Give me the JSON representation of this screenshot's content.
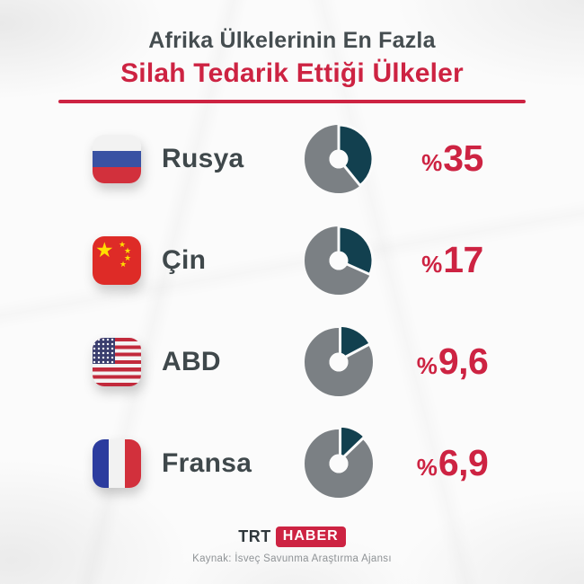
{
  "title": {
    "line1": "Afrika Ülkelerinin En Fazla",
    "line2": "Silah Tedarik Ettiği Ülkeler"
  },
  "chart_data": {
    "type": "pie",
    "title": "Afrika Ülkelerinin En Fazla Silah Tedarik Ettiği Ülkeler",
    "categories": [
      "Rusya",
      "Çin",
      "ABD",
      "Fransa"
    ],
    "values": [
      35,
      17,
      9.6,
      6.9
    ],
    "unit": "%",
    "display_values": [
      "%35",
      "%17",
      "%9,6",
      "%6,9"
    ],
    "legend_position": "none",
    "slice_color": "#12404f",
    "remainder_color": "#7b8084",
    "value_color": "#cd2342",
    "source": "Kaynak: İsveç Savunma Araştırma Ajansı"
  },
  "rows": [
    {
      "country": "Rusya",
      "flag": "russia-flag",
      "value_sign": "%",
      "value_num": "35",
      "percent": 35,
      "slice_deg": 141,
      "explode": 0
    },
    {
      "country": "Çin",
      "flag": "china-flag",
      "value_sign": "%",
      "value_num": "17",
      "percent": 17,
      "slice_deg": 114,
      "explode": 0
    },
    {
      "country": "ABD",
      "flag": "usa-flag",
      "value_sign": "%",
      "value_num": "9,6",
      "percent": 9.6,
      "slice_deg": 62,
      "explode": 3
    },
    {
      "country": "Fransa",
      "flag": "france-flag",
      "value_sign": "%",
      "value_num": "6,9",
      "percent": 6.9,
      "slice_deg": 46,
      "explode": 4
    }
  ],
  "footer": {
    "brand_trt": "TRT",
    "brand_haber": "HABER",
    "source": "Kaynak: İsveç Savunma Araştırma Ajansı"
  },
  "icons": {
    "star": "★"
  },
  "colors": {
    "title_dark": "#454d50",
    "accent_red": "#cd2342",
    "donut_slice": "#12404f",
    "donut_remainder": "#7b8084",
    "hole_white": "#fbfbfb"
  }
}
